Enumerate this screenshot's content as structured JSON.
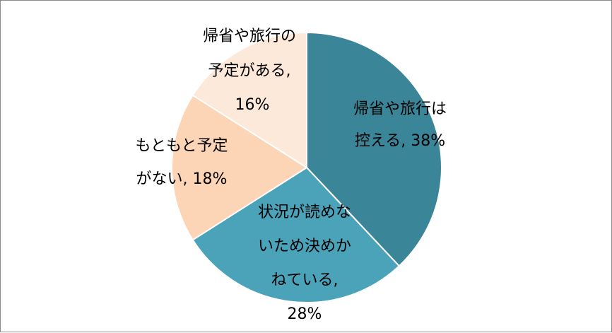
{
  "chart_data": {
    "type": "pie",
    "title": "",
    "slices": [
      {
        "label_lines": [
          "帰省や旅行は",
          "控える, 38%"
        ],
        "value": 38,
        "color": "#3a8598"
      },
      {
        "label_lines": [
          "状況が読めな",
          "いため決めか",
          "ねている,",
          "28%"
        ],
        "value": 28,
        "color": "#4aa3b9"
      },
      {
        "label_lines": [
          "もともと予定",
          "がない, 18%"
        ],
        "value": 18,
        "color": "#fbd5b5"
      },
      {
        "label_lines": [
          "帰省や旅行の",
          "予定がある,",
          "16%"
        ],
        "value": 16,
        "color": "#fde9d9"
      }
    ],
    "legend": "none",
    "start_angle": "12 o'clock",
    "direction": "clockwise",
    "slice_border_color": "#ffffff"
  }
}
